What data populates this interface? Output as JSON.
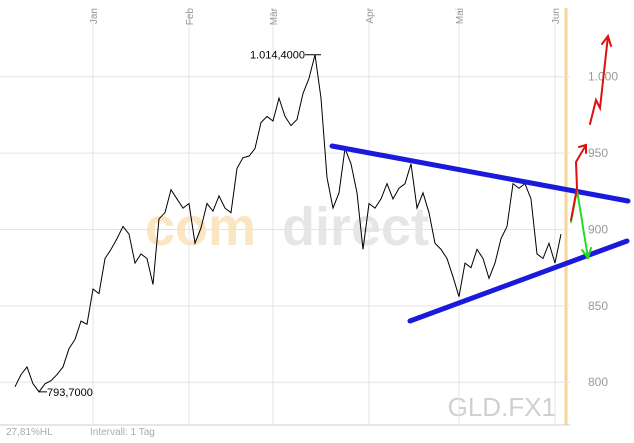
{
  "chart_data": {
    "type": "line",
    "categories": [
      null,
      null,
      null,
      null,
      null,
      null,
      null,
      null,
      null,
      null,
      null,
      null,
      null,
      "Jan",
      null,
      null,
      null,
      null,
      null,
      null,
      null,
      null,
      null,
      null,
      null,
      null,
      null,
      null,
      null,
      "Feb",
      null,
      null,
      null,
      null,
      null,
      null,
      null,
      null,
      null,
      null,
      null,
      null,
      null,
      "Mär",
      null,
      null,
      null,
      null,
      null,
      null,
      null,
      null,
      null,
      null,
      null,
      null,
      null,
      null,
      null,
      "Apr",
      null,
      null,
      null,
      null,
      null,
      null,
      null,
      null,
      null,
      null,
      null,
      null,
      null,
      null,
      "Mai",
      null,
      null,
      null,
      null,
      null,
      null,
      null,
      null,
      null,
      null,
      null,
      null,
      null,
      null,
      null,
      "Jun",
      null
    ],
    "series": [
      {
        "name": "GLD.FX1",
        "color": "#000000",
        "values": [
          797,
          805,
          810,
          799,
          793.7,
          799,
          801,
          805,
          810,
          822,
          828,
          840,
          838,
          861,
          858,
          881,
          887,
          894,
          902,
          897,
          878,
          884,
          881,
          864,
          907,
          911,
          926,
          920,
          914,
          917,
          891,
          901,
          917,
          912,
          922,
          914,
          911,
          940,
          947,
          948,
          953,
          970,
          974,
          971,
          986,
          974,
          968,
          972,
          989,
          999,
          1014.4,
          986,
          934,
          914,
          924,
          953,
          943,
          924,
          887,
          917,
          914,
          920,
          930,
          920,
          927,
          930,
          943,
          914,
          924,
          911,
          891,
          887,
          881,
          869,
          856,
          878,
          875,
          887,
          881,
          868,
          878,
          894,
          902,
          930,
          927,
          930,
          920,
          884,
          881,
          891,
          878,
          897
        ]
      }
    ],
    "annotations": [
      {
        "label": "1.014,4000",
        "value": 1014.4
      },
      {
        "label": "793,7000",
        "value": 793.7
      }
    ],
    "ylim": [
      772,
      1045
    ],
    "yticks": [
      800,
      850,
      900,
      950,
      {
        "value": 1000,
        "label": "1.000"
      }
    ],
    "grid": true,
    "watermark": {
      "brand_a": "com",
      "brand_b": "direct",
      "symbol": "GLD.FX1"
    },
    "footer": {
      "range": "27,81%HL",
      "interval": "Intervall: 1 Tag"
    }
  }
}
